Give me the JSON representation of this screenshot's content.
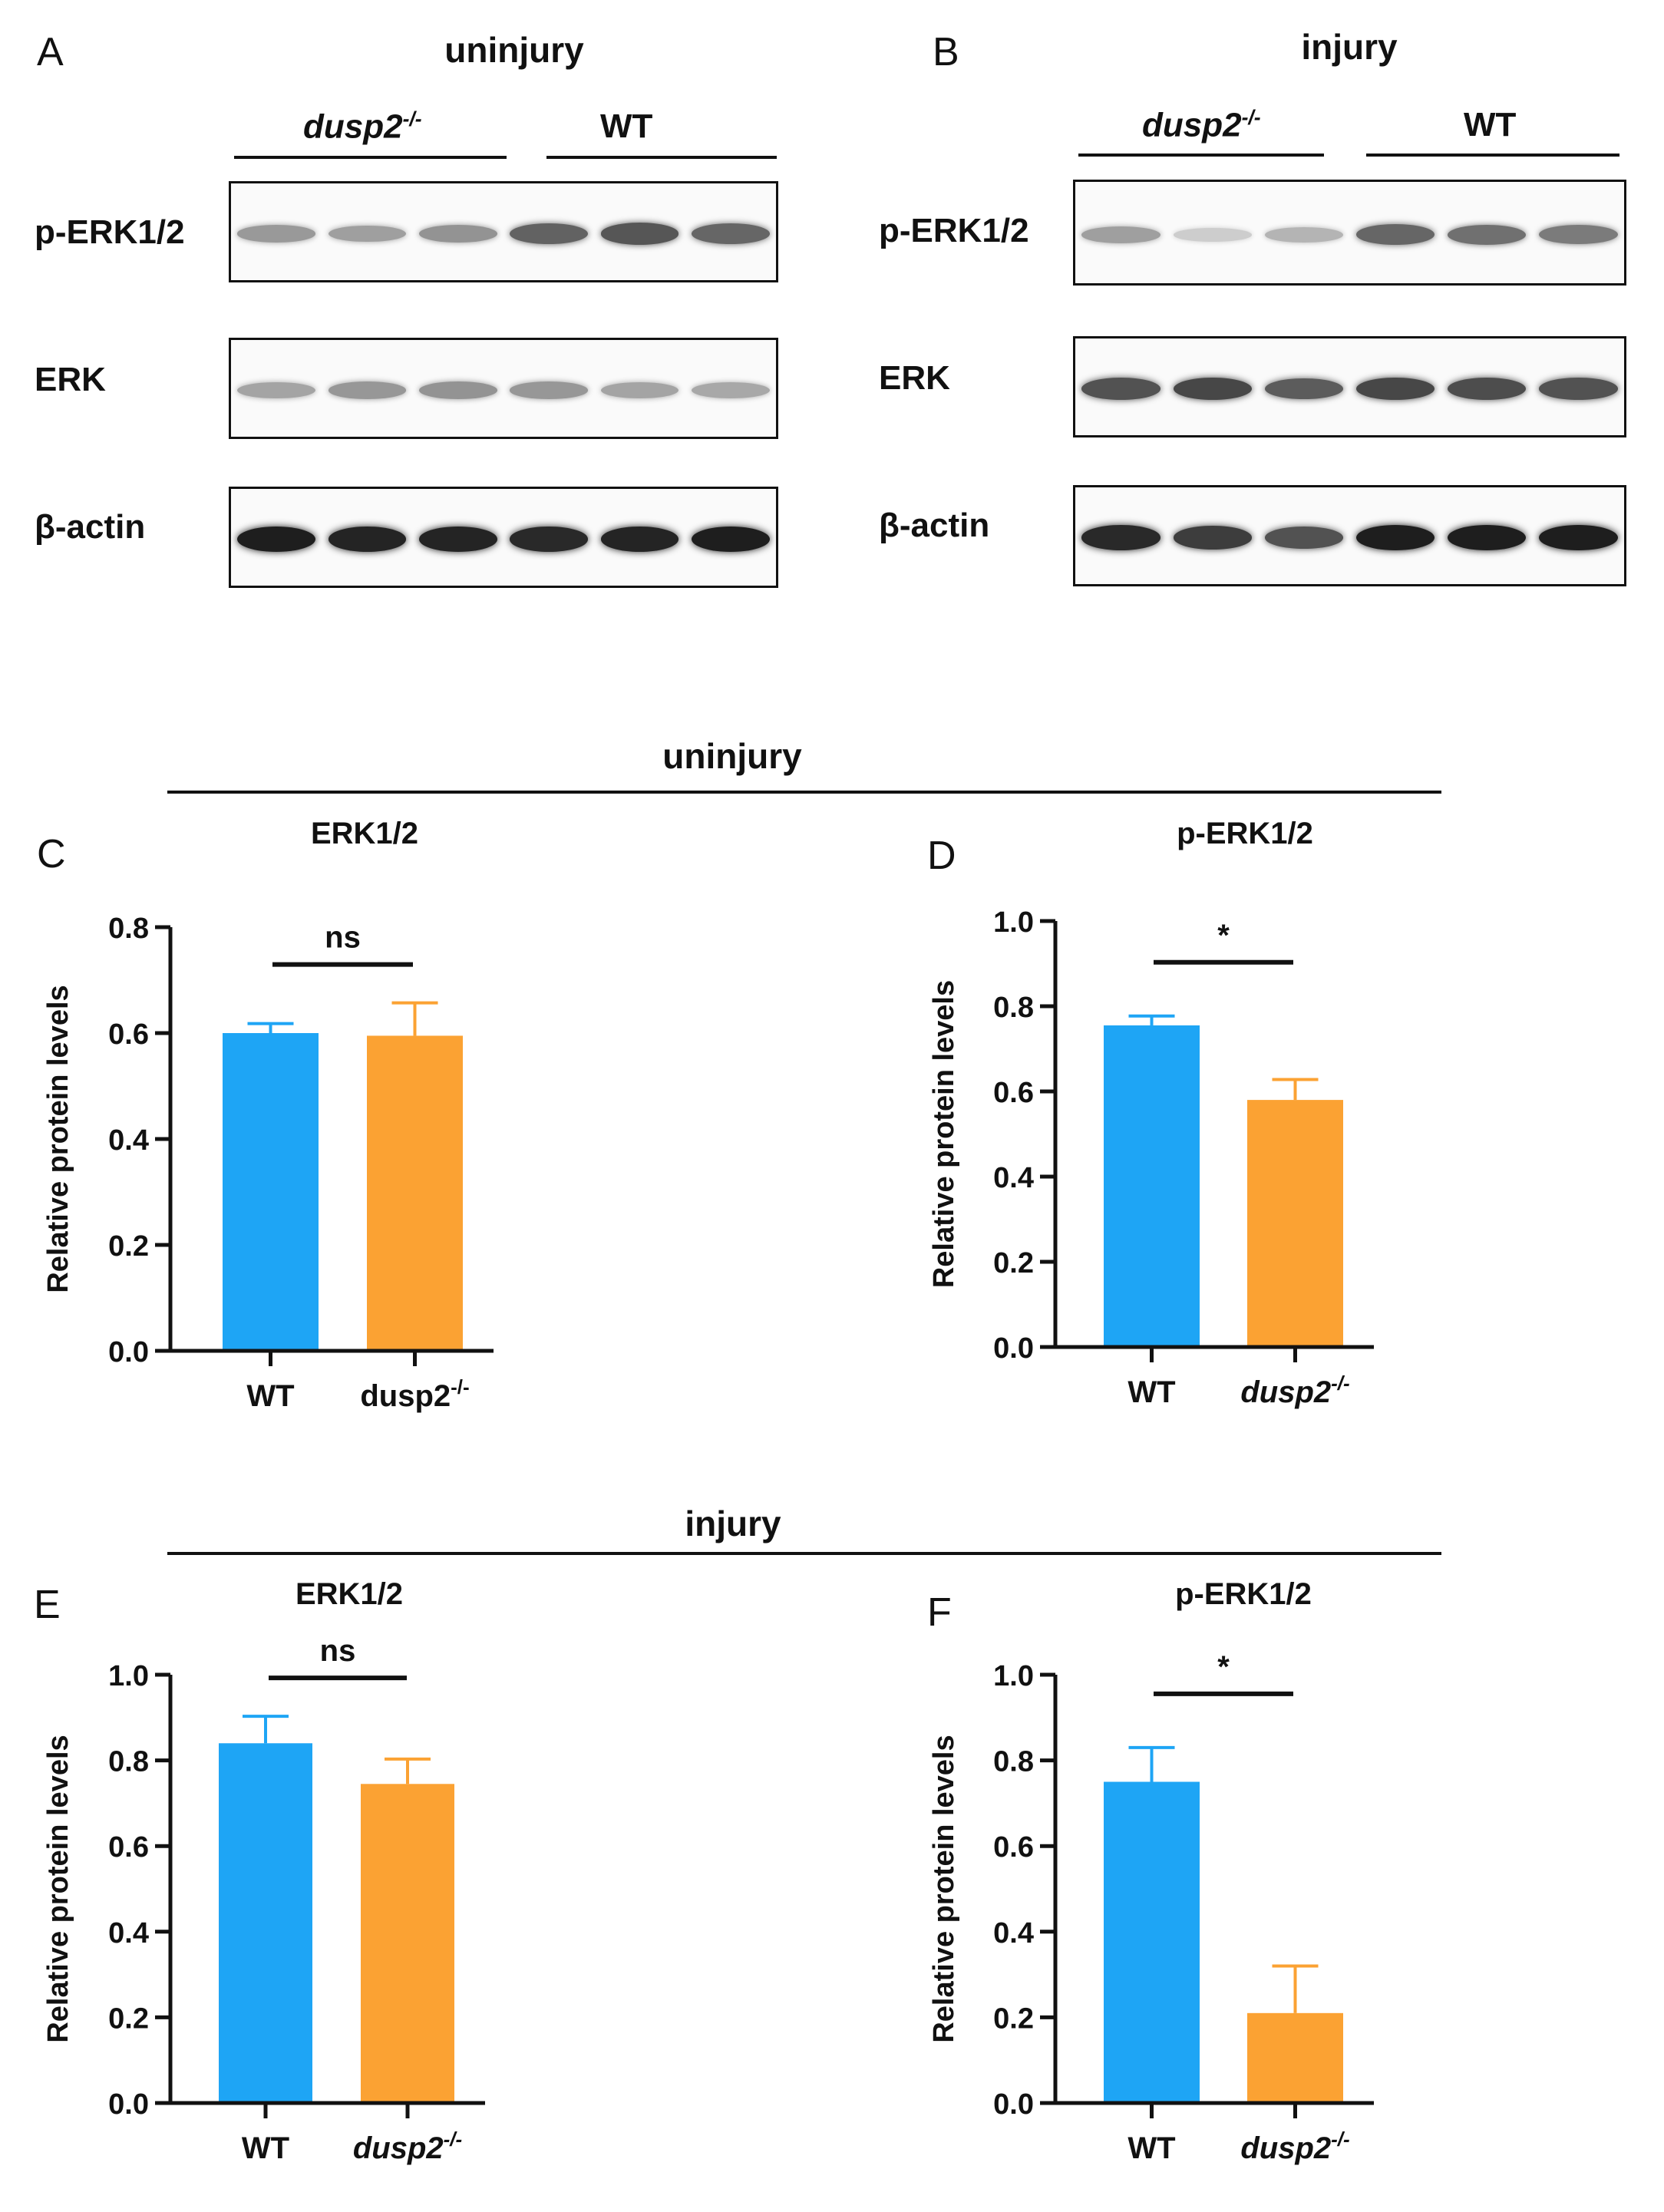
{
  "panels": {
    "A": {
      "letter": "A",
      "condition": "uninjury",
      "group_left": "dusp2",
      "group_left_sup": "-/-",
      "group_right": "WT",
      "rows": [
        {
          "label": "p-ERK1/2",
          "intensities": [
            0.35,
            0.32,
            0.38,
            0.62,
            0.68,
            0.6
          ]
        },
        {
          "label": "ERK",
          "intensities": [
            0.3,
            0.36,
            0.38,
            0.36,
            0.3,
            0.28
          ]
        },
        {
          "label": "β-actin",
          "intensities": [
            0.95,
            0.92,
            0.92,
            0.9,
            0.92,
            0.95
          ]
        }
      ]
    },
    "B": {
      "letter": "B",
      "condition": "injury",
      "group_left": "dusp2",
      "group_left_sup": "-/-",
      "group_right": "WT",
      "rows": [
        {
          "label": "p-ERK1/2",
          "intensities": [
            0.32,
            0.1,
            0.22,
            0.6,
            0.55,
            0.5
          ]
        },
        {
          "label": "ERK",
          "intensities": [
            0.7,
            0.75,
            0.65,
            0.75,
            0.72,
            0.7
          ]
        },
        {
          "label": "β-actin",
          "intensities": [
            0.9,
            0.8,
            0.7,
            0.95,
            0.95,
            0.95
          ]
        }
      ]
    }
  },
  "section_titles": {
    "uninjury": "uninjury",
    "injury": "injury"
  },
  "colors": {
    "wt": "#1ea5f5",
    "dusp2": "#fba233"
  },
  "chart_data": [
    {
      "panel": "C",
      "type": "bar",
      "title": "ERK1/2",
      "ylabel": "Relative protein levels",
      "categories": [
        "WT",
        "dusp2"
      ],
      "category_sup": [
        "",
        "-/-"
      ],
      "category_italic": [
        false,
        false
      ],
      "values": [
        0.6,
        0.595
      ],
      "errors": [
        0.018,
        0.062
      ],
      "ylim": [
        0,
        0.8
      ],
      "yticks": [
        "0.0",
        "0.2",
        "0.4",
        "0.6",
        "0.8"
      ],
      "significance": "ns"
    },
    {
      "panel": "D",
      "type": "bar",
      "title": "p-ERK1/2",
      "ylabel": "Relative protein levels",
      "categories": [
        "WT",
        "dusp2"
      ],
      "category_sup": [
        "",
        "-/-"
      ],
      "category_italic": [
        false,
        true
      ],
      "values": [
        0.755,
        0.58
      ],
      "errors": [
        0.022,
        0.048
      ],
      "ylim": [
        0,
        1.0
      ],
      "yticks": [
        "0.0",
        "0.2",
        "0.4",
        "0.6",
        "0.8",
        "1.0"
      ],
      "significance": "*"
    },
    {
      "panel": "E",
      "type": "bar",
      "title": "ERK1/2",
      "ylabel": "Relative protein levels",
      "categories": [
        "WT",
        "dusp2"
      ],
      "category_sup": [
        "",
        "-/-"
      ],
      "category_italic": [
        false,
        true
      ],
      "values": [
        0.84,
        0.745
      ],
      "errors": [
        0.063,
        0.058
      ],
      "ylim": [
        0,
        1.0
      ],
      "yticks": [
        "0.0",
        "0.2",
        "0.4",
        "0.6",
        "0.8",
        "1.0"
      ],
      "significance": "ns"
    },
    {
      "panel": "F",
      "type": "bar",
      "title": "p-ERK1/2",
      "ylabel": "Relative protein levels",
      "categories": [
        "WT",
        "dusp2"
      ],
      "category_sup": [
        "",
        "-/-"
      ],
      "category_italic": [
        false,
        true
      ],
      "values": [
        0.75,
        0.21
      ],
      "errors": [
        0.08,
        0.11
      ],
      "ylim": [
        0,
        1.0
      ],
      "yticks": [
        "0.0",
        "0.2",
        "0.4",
        "0.6",
        "0.8",
        "1.0"
      ],
      "significance": "*"
    }
  ]
}
